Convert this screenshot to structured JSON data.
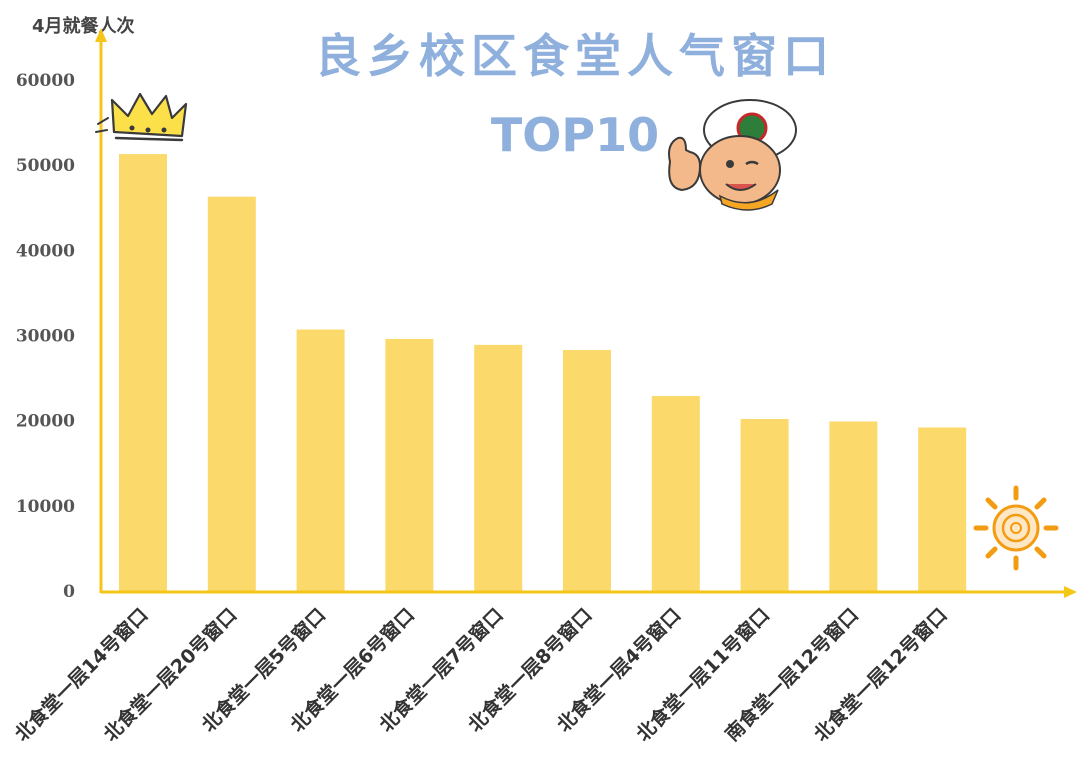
{
  "header": {
    "y_unit": "4月就餐人次",
    "title": "良乡校区食堂人气窗口",
    "subtitle": "TOP10"
  },
  "colors": {
    "bar": "#fcd96b",
    "axis": "#f5c518",
    "title": "#8fb0dc"
  },
  "decorations": [
    "crown-icon",
    "chef-mascot-icon",
    "sun-icon"
  ],
  "chart_data": {
    "type": "bar",
    "categories": [
      "北食堂一层14号窗口",
      "北食堂一层20号窗口",
      "北食堂一层5号窗口",
      "北食堂一层6号窗口",
      "北食堂一层7号窗口",
      "北食堂一层8号窗口",
      "北食堂一层4号窗口",
      "北食堂一层11号窗口",
      "南食堂一层12号窗口",
      "北食堂一层12号窗口"
    ],
    "values": [
      51300,
      46300,
      30700,
      29600,
      28900,
      28300,
      22900,
      20200,
      19900,
      19200
    ],
    "ylabel": "4月就餐人次",
    "ylim": [
      0,
      60000
    ],
    "yticks": [
      0,
      10000,
      20000,
      30000,
      40000,
      50000,
      60000
    ],
    "grid": false
  }
}
